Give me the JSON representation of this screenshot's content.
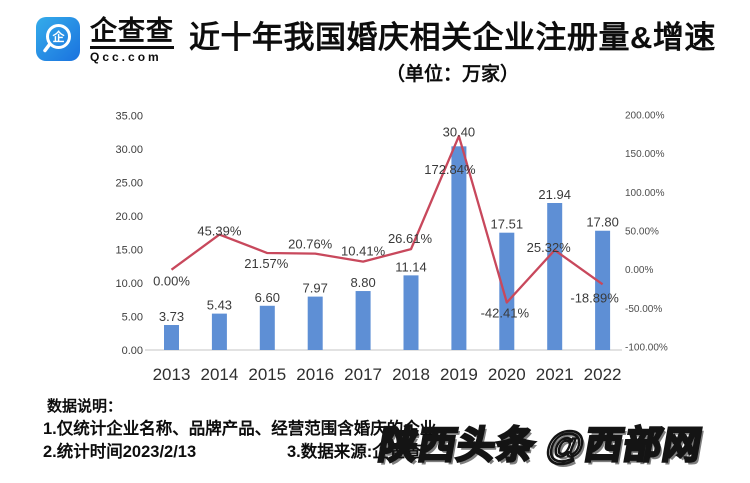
{
  "header": {
    "logo": {
      "brand": "企查查",
      "domain": "Qcc.com"
    },
    "title": "近十年我国婚庆相关企业注册量&增速",
    "subtitle": "（单位：万家）"
  },
  "chart_data": {
    "type": "bar",
    "title": "近十年我国婚庆相关企业注册量&增速",
    "unit": "万家",
    "categories": [
      "2013",
      "2014",
      "2015",
      "2016",
      "2017",
      "2018",
      "2019",
      "2020",
      "2021",
      "2022"
    ],
    "series": [
      {
        "name": "注册量",
        "type": "bar",
        "axis": "left",
        "color": "#5E8FD5",
        "values": [
          3.73,
          5.43,
          6.6,
          7.97,
          8.8,
          11.14,
          30.4,
          17.51,
          21.94,
          17.8
        ],
        "labels": [
          "3.73",
          "5.43",
          "6.60",
          "7.97",
          "8.80",
          "11.14",
          "30.40",
          "17.51",
          "21.94",
          "17.80"
        ]
      },
      {
        "name": "增速",
        "type": "line",
        "axis": "right",
        "color": "#C8485C",
        "values": [
          0.0,
          45.39,
          21.57,
          20.76,
          10.41,
          26.61,
          172.84,
          -42.41,
          25.32,
          -18.89
        ],
        "labels": [
          "0.00%",
          "45.39%",
          "21.57%",
          "20.76%",
          "10.41%",
          "26.61%",
          "172.84%",
          "-42.41%",
          "25.32%",
          "-18.89%"
        ]
      }
    ],
    "y_left": {
      "min": 0,
      "max": 35,
      "step": 5,
      "tick_labels": [
        "0.00",
        "5.00",
        "10.00",
        "15.00",
        "20.00",
        "25.00",
        "30.00",
        "35.00"
      ]
    },
    "y_right": {
      "min": -100,
      "max": 200,
      "step": 50,
      "tick_labels": [
        "-100.00%",
        "-50.00%",
        "0.00%",
        "50.00%",
        "100.00%",
        "150.00%",
        "200.00%"
      ]
    },
    "grid": false,
    "legend": "none"
  },
  "notes": {
    "heading": "数据说明：",
    "item1": "1.仅统计企业名称、品牌产品、经营范围含婚庆的企业",
    "item2": "2.统计时间2023/2/13",
    "item3": "3.数据来源:企查查"
  },
  "watermark": "陕西头条 @西部网",
  "colors": {
    "bar": "#5E8FD5",
    "line": "#C8485C",
    "axis_text": "#3d3d3d",
    "baseline": "#d9d9d9",
    "logo_gradient_start": "#35ACEA",
    "logo_gradient_end": "#1A72DF"
  }
}
